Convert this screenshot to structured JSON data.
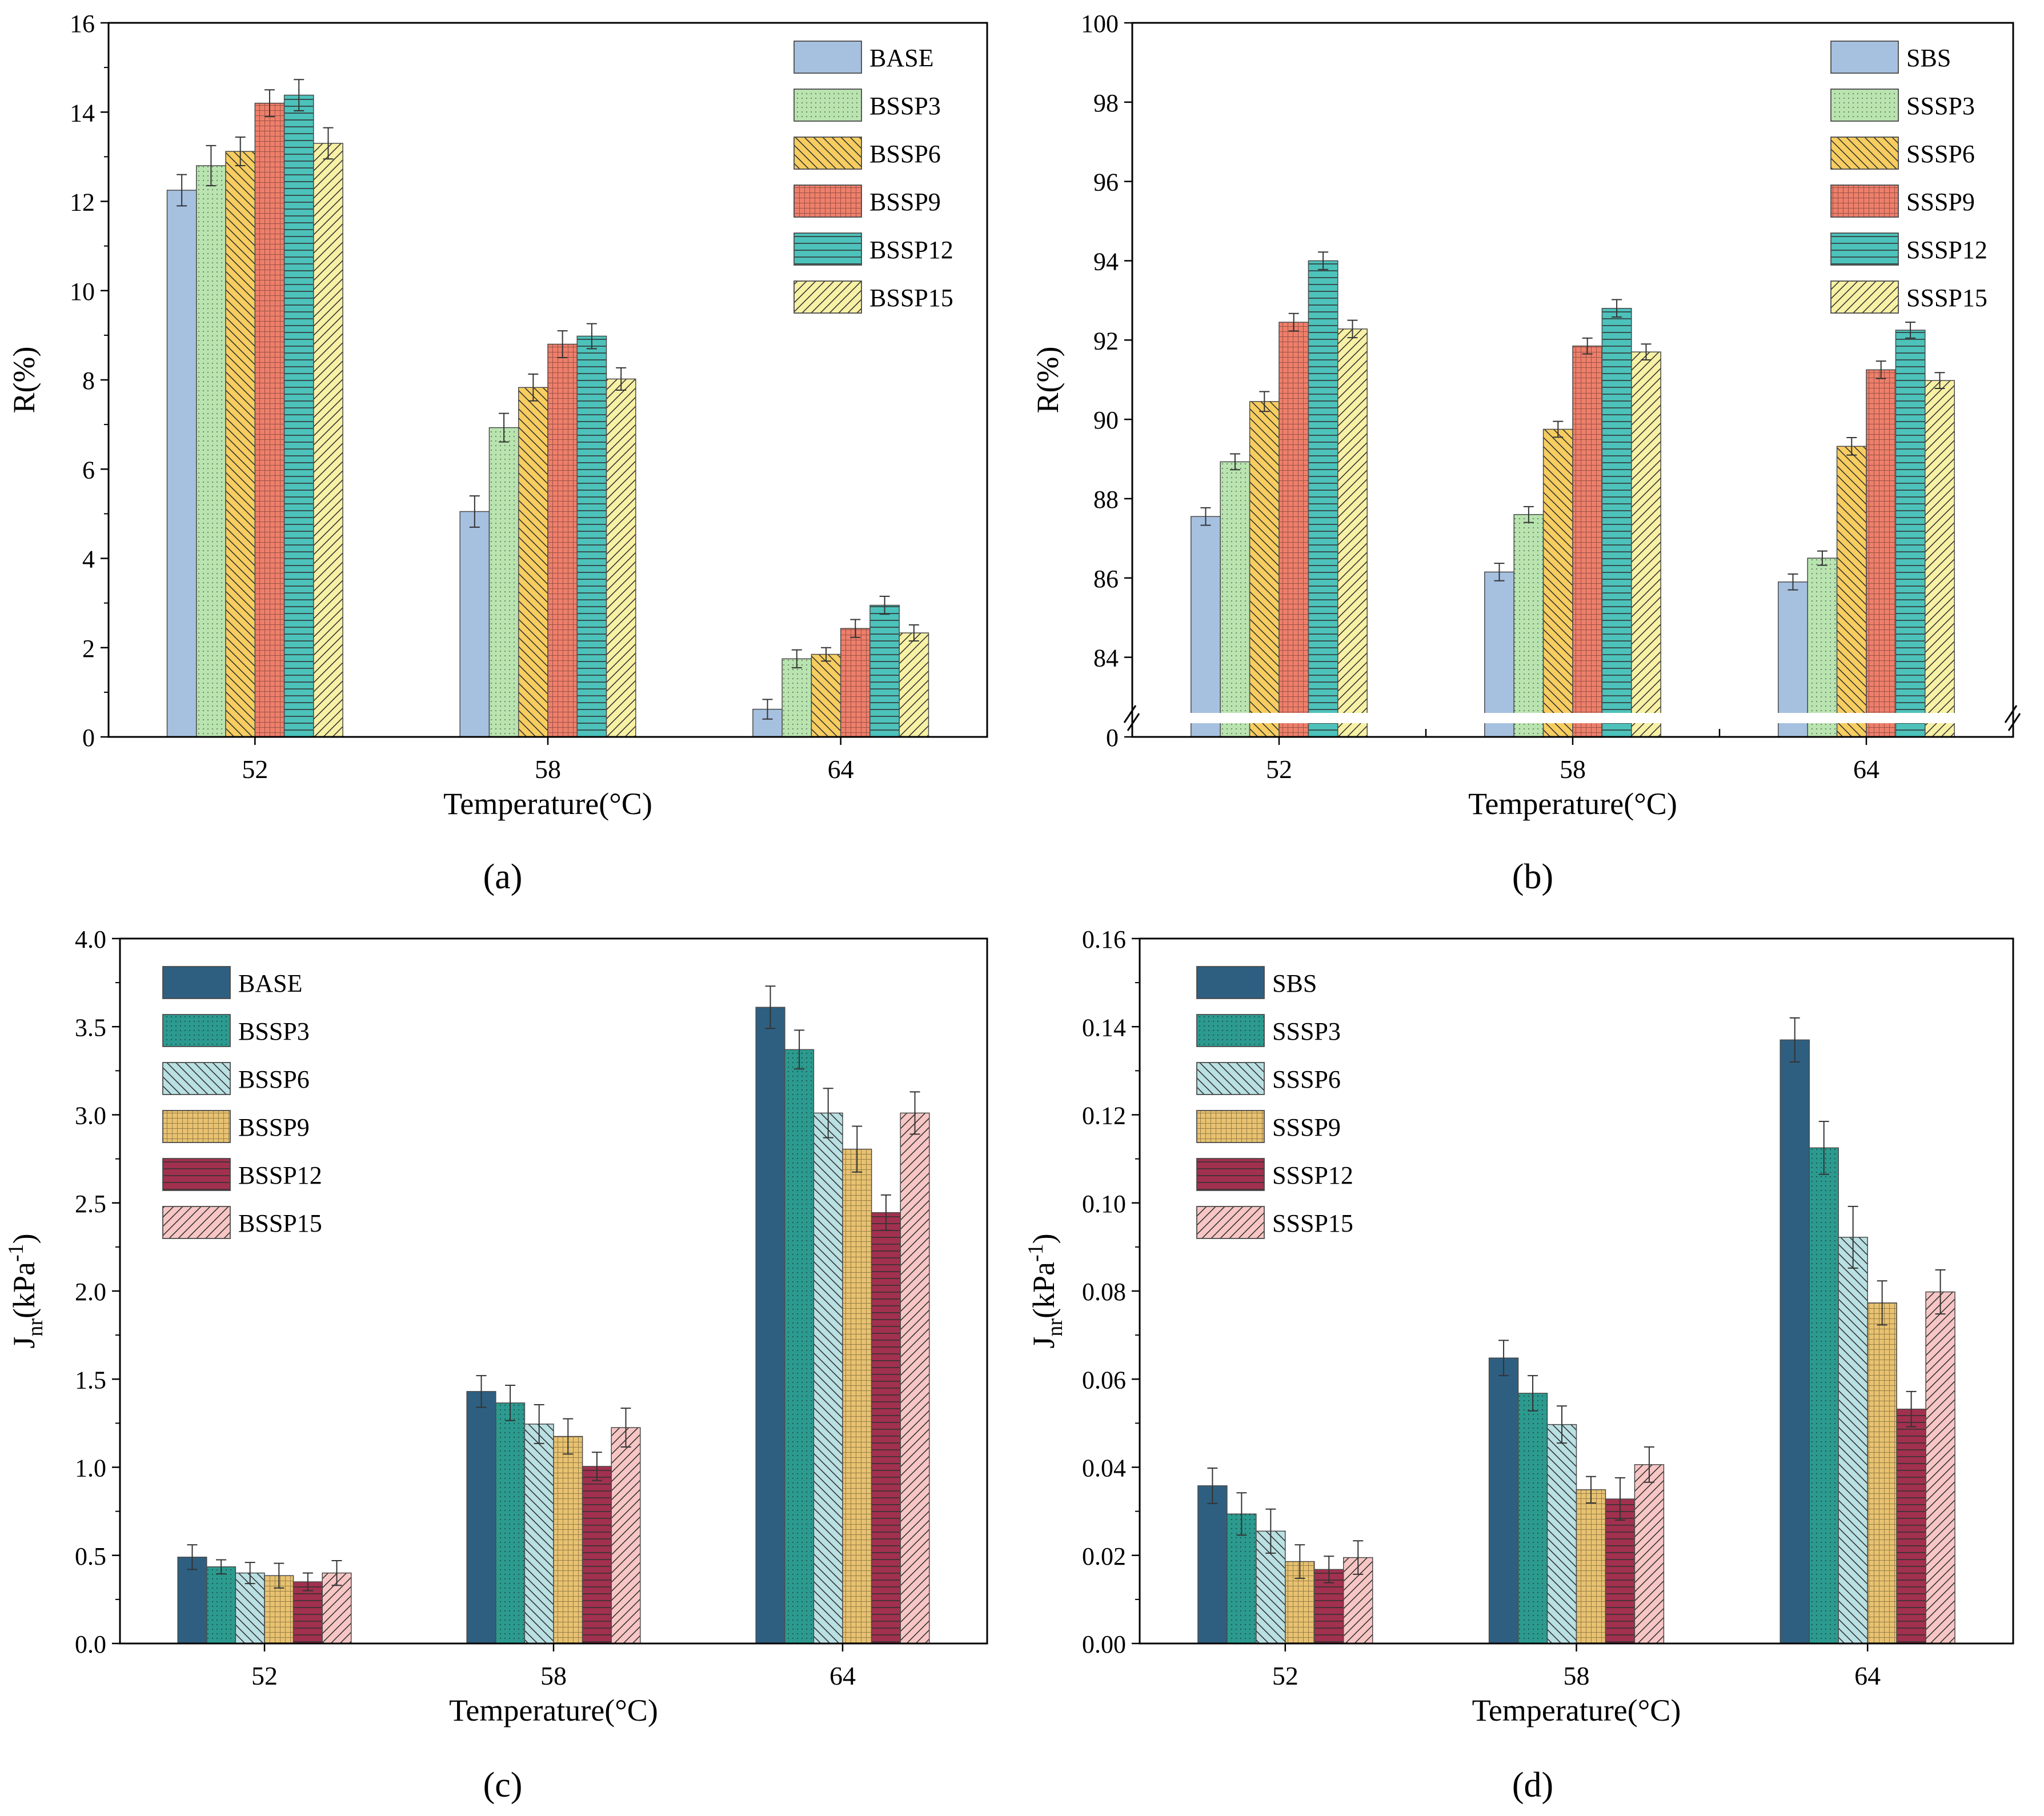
{
  "panel_labels": [
    "(a)",
    "(b)",
    "(c)",
    "(d)"
  ],
  "chart_data": [
    {
      "type": "bar",
      "panel": "(a)",
      "title": "",
      "xlabel": "Temperature(°C)",
      "ylabel": "R(%)",
      "ylim": [
        0,
        16
      ],
      "yticks": [
        "0",
        "2",
        "4",
        "6",
        "8",
        "10",
        "12",
        "14",
        "16"
      ],
      "categories": [
        "52",
        "58",
        "64"
      ],
      "legend_position": "top-right",
      "series": [
        {
          "name": "BASE",
          "color": "#a6c0e0",
          "pattern": "none",
          "values": [
            12.25,
            5.05,
            0.62
          ],
          "errors": [
            0.35,
            0.35,
            0.22
          ]
        },
        {
          "name": "BSSP3",
          "color": "#b9e4b0",
          "pattern": "dots",
          "values": [
            12.8,
            6.93,
            1.75
          ],
          "errors": [
            0.45,
            0.32,
            0.2
          ]
        },
        {
          "name": "BSSP6",
          "color": "#f7cd60",
          "pattern": "backslash",
          "values": [
            13.12,
            7.83,
            1.85
          ],
          "errors": [
            0.32,
            0.3,
            0.15
          ]
        },
        {
          "name": "BSSP9",
          "color": "#ee7f6b",
          "pattern": "grid",
          "values": [
            14.2,
            8.8,
            2.43
          ],
          "errors": [
            0.3,
            0.3,
            0.2
          ]
        },
        {
          "name": "BSSP12",
          "color": "#4cc2bb",
          "pattern": "hlines",
          "values": [
            14.38,
            8.98,
            2.95
          ],
          "errors": [
            0.35,
            0.28,
            0.2
          ]
        },
        {
          "name": "BSSP15",
          "color": "#f8f1a5",
          "pattern": "slash",
          "values": [
            13.3,
            8.02,
            2.33
          ],
          "errors": [
            0.35,
            0.25,
            0.18
          ]
        }
      ]
    },
    {
      "type": "bar",
      "panel": "(b)",
      "title": "",
      "xlabel": "Temperature(°C)",
      "ylabel": "R(%)",
      "ylim": [
        83,
        100
      ],
      "axis_break": true,
      "yticks": [
        "0",
        "84",
        "86",
        "88",
        "90",
        "92",
        "94",
        "96",
        "98",
        "100"
      ],
      "categories": [
        "52",
        "58",
        "64"
      ],
      "legend_position": "top-right",
      "series": [
        {
          "name": "SBS",
          "color": "#a6c0e0",
          "pattern": "none",
          "values": [
            87.55,
            86.15,
            85.9
          ],
          "errors": [
            0.22,
            0.22,
            0.2
          ]
        },
        {
          "name": "SSSP3",
          "color": "#b9e4b0",
          "pattern": "dots",
          "values": [
            88.93,
            87.6,
            86.5
          ],
          "errors": [
            0.2,
            0.2,
            0.18
          ]
        },
        {
          "name": "SSSP6",
          "color": "#f7cd60",
          "pattern": "backslash",
          "values": [
            90.45,
            89.75,
            89.32
          ],
          "errors": [
            0.25,
            0.2,
            0.22
          ]
        },
        {
          "name": "SSSP9",
          "color": "#ee7f6b",
          "pattern": "grid",
          "values": [
            92.45,
            91.85,
            91.25
          ],
          "errors": [
            0.22,
            0.2,
            0.22
          ]
        },
        {
          "name": "SSSP12",
          "color": "#4cc2bb",
          "pattern": "hlines",
          "values": [
            94.0,
            92.8,
            92.25
          ],
          "errors": [
            0.22,
            0.22,
            0.2
          ]
        },
        {
          "name": "SSSP15",
          "color": "#f8f1a5",
          "pattern": "slash",
          "values": [
            92.28,
            91.7,
            90.98
          ],
          "errors": [
            0.22,
            0.2,
            0.2
          ]
        }
      ]
    },
    {
      "type": "bar",
      "panel": "(c)",
      "title": "",
      "xlabel": "Temperature(°C)",
      "ylabel": "J",
      "ylabel_sub": "nr",
      "ylabel_rest": "(kPa",
      "ylabel_sup": "-1",
      "ylabel_end": ")",
      "ylim": [
        0,
        4
      ],
      "yticks": [
        "0.0",
        "0.5",
        "1.0",
        "1.5",
        "2.0",
        "2.5",
        "3.0",
        "3.5",
        "4.0"
      ],
      "categories": [
        "52",
        "58",
        "64"
      ],
      "legend_position": "top-left",
      "series": [
        {
          "name": "BASE",
          "color": "#2e5f80",
          "pattern": "none",
          "values": [
            0.49,
            1.43,
            3.61
          ],
          "errors": [
            0.07,
            0.09,
            0.12
          ]
        },
        {
          "name": "BSSP3",
          "color": "#2c9a8f",
          "pattern": "dots",
          "values": [
            0.435,
            1.365,
            3.37
          ],
          "errors": [
            0.04,
            0.1,
            0.11
          ]
        },
        {
          "name": "BSSP6",
          "color": "#b9e0e3",
          "pattern": "backslash",
          "values": [
            0.4,
            1.245,
            3.01
          ],
          "errors": [
            0.06,
            0.11,
            0.14
          ]
        },
        {
          "name": "BSSP9",
          "color": "#e8c270",
          "pattern": "grid",
          "values": [
            0.385,
            1.175,
            2.805
          ],
          "errors": [
            0.07,
            0.1,
            0.13
          ]
        },
        {
          "name": "BSSP12",
          "color": "#a2304f",
          "pattern": "hlines",
          "values": [
            0.35,
            1.005,
            2.445
          ],
          "errors": [
            0.05,
            0.08,
            0.1
          ]
        },
        {
          "name": "BSSP15",
          "color": "#f7c6c4",
          "pattern": "slash",
          "values": [
            0.4,
            1.225,
            3.01
          ],
          "errors": [
            0.07,
            0.11,
            0.12
          ]
        }
      ]
    },
    {
      "type": "bar",
      "panel": "(d)",
      "title": "",
      "xlabel": "Temperature(°C)",
      "ylabel": "J",
      "ylabel_sub": "nr",
      "ylabel_rest": "(kPa",
      "ylabel_sup": "-1",
      "ylabel_end": ")",
      "ylim": [
        0,
        0.16
      ],
      "yticks": [
        "0.00",
        "0.02",
        "0.04",
        "0.06",
        "0.08",
        "0.10",
        "0.12",
        "0.14",
        "0.16"
      ],
      "categories": [
        "52",
        "58",
        "64"
      ],
      "legend_position": "top-left",
      "series": [
        {
          "name": "SBS",
          "color": "#2e5f80",
          "pattern": "none",
          "values": [
            0.0358,
            0.0648,
            0.137
          ],
          "errors": [
            0.004,
            0.004,
            0.005
          ]
        },
        {
          "name": "SSSP3",
          "color": "#2c9a8f",
          "pattern": "dots",
          "values": [
            0.0294,
            0.0568,
            0.1125
          ],
          "errors": [
            0.0048,
            0.004,
            0.006
          ]
        },
        {
          "name": "SSSP6",
          "color": "#b9e0e3",
          "pattern": "backslash",
          "values": [
            0.0255,
            0.0497,
            0.0922
          ],
          "errors": [
            0.005,
            0.0042,
            0.007
          ]
        },
        {
          "name": "SSSP9",
          "color": "#e8c270",
          "pattern": "grid",
          "values": [
            0.0186,
            0.0349,
            0.0773
          ],
          "errors": [
            0.0038,
            0.003,
            0.005
          ]
        },
        {
          "name": "SSSP12",
          "color": "#a2304f",
          "pattern": "hlines",
          "values": [
            0.0168,
            0.0328,
            0.0532
          ],
          "errors": [
            0.003,
            0.0048,
            0.004
          ]
        },
        {
          "name": "SSSP15",
          "color": "#f7c6c4",
          "pattern": "slash",
          "values": [
            0.0195,
            0.0406,
            0.0798
          ],
          "errors": [
            0.0038,
            0.004,
            0.005
          ]
        }
      ]
    }
  ]
}
